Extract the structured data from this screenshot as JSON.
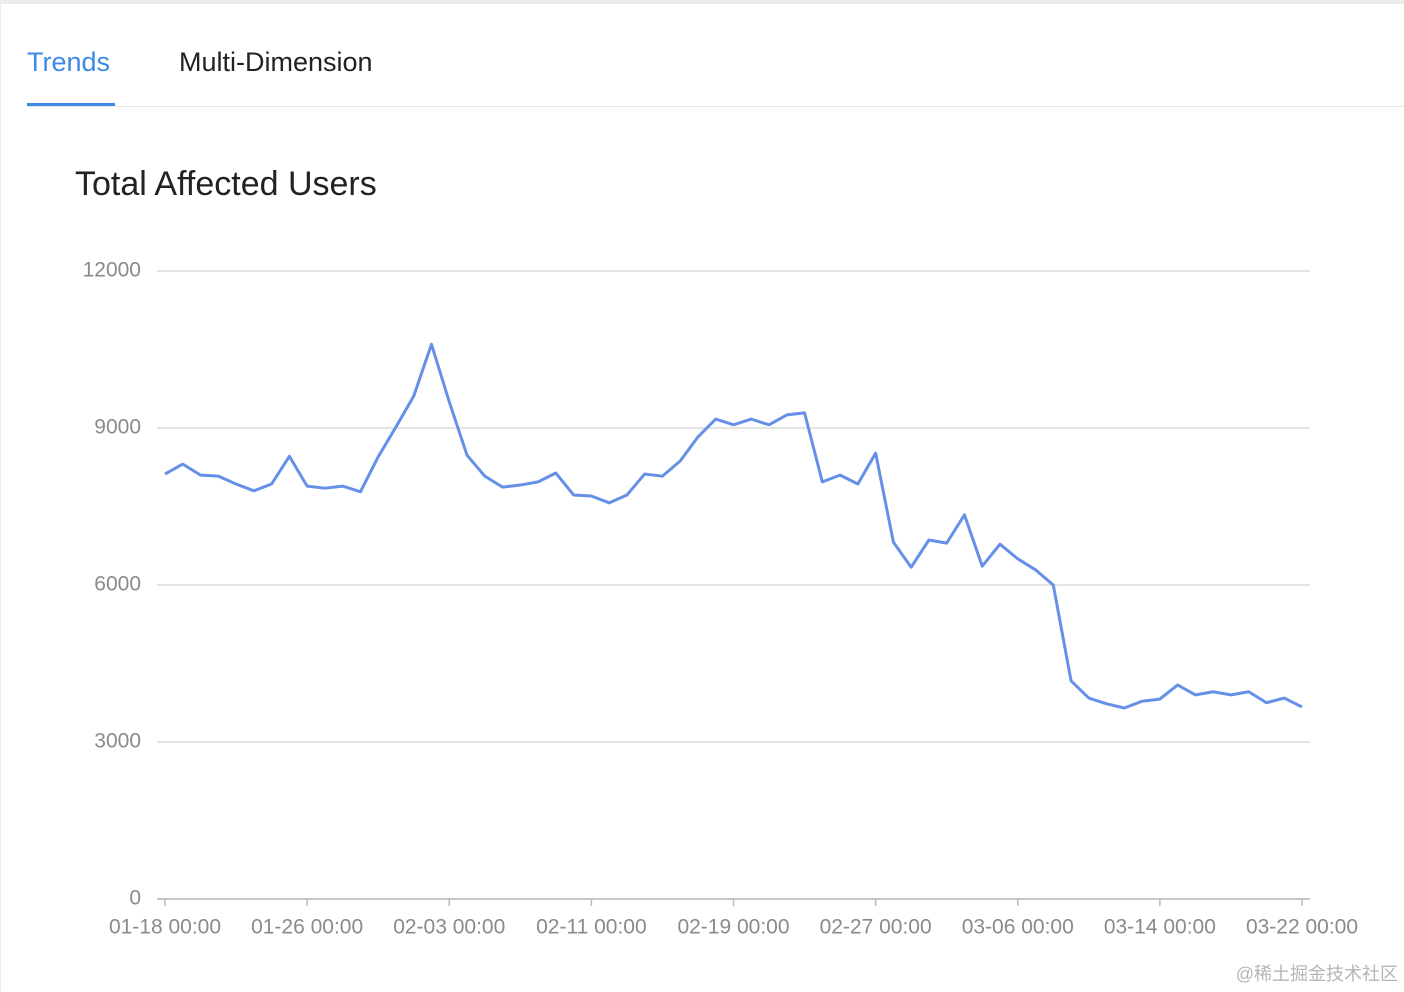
{
  "tabs": [
    "Trends",
    "Multi-Dimension"
  ],
  "watermark": "@稀土掘金技术社区",
  "chart_data": {
    "type": "line",
    "title": "Total Affected Users",
    "categories": [
      "01-18 00:00",
      null,
      null,
      null,
      null,
      null,
      null,
      null,
      "01-26 00:00",
      null,
      null,
      null,
      null,
      null,
      null,
      null,
      "02-03 00:00",
      null,
      null,
      null,
      null,
      null,
      null,
      null,
      "02-11 00:00",
      null,
      null,
      null,
      null,
      null,
      null,
      null,
      "02-19 00:00",
      null,
      null,
      null,
      null,
      null,
      null,
      null,
      "02-27 00:00",
      null,
      null,
      null,
      null,
      null,
      null,
      null,
      "03-06 00:00",
      null,
      null,
      null,
      null,
      null,
      null,
      null,
      "03-14 00:00",
      null,
      null,
      null,
      null,
      null,
      null,
      null,
      "03-22 00:00"
    ],
    "series": [
      {
        "name": "Total Affected Users",
        "color": "#6690e8",
        "values": [
          8120,
          8310,
          8100,
          8080,
          7930,
          7800,
          7930,
          8460,
          7890,
          7850,
          7890,
          7780,
          8450,
          9020,
          9610,
          10600,
          9500,
          8480,
          8080,
          7870,
          7910,
          7970,
          8140,
          7720,
          7700,
          7570,
          7720,
          8120,
          8080,
          8370,
          8830,
          9170,
          9060,
          9170,
          9060,
          9250,
          9290,
          7970,
          8100,
          7930,
          8520,
          6820,
          6340,
          6860,
          6800,
          7340,
          6360,
          6780,
          6500,
          6290,
          6000,
          4170,
          3840,
          3730,
          3650,
          3780,
          3820,
          4090,
          3900,
          3960,
          3900,
          3960,
          3750,
          3840,
          3670
        ]
      }
    ],
    "ylim": [
      0,
      12000
    ],
    "yticks": [
      0,
      3000,
      6000,
      9000,
      12000
    ],
    "grid": true
  }
}
